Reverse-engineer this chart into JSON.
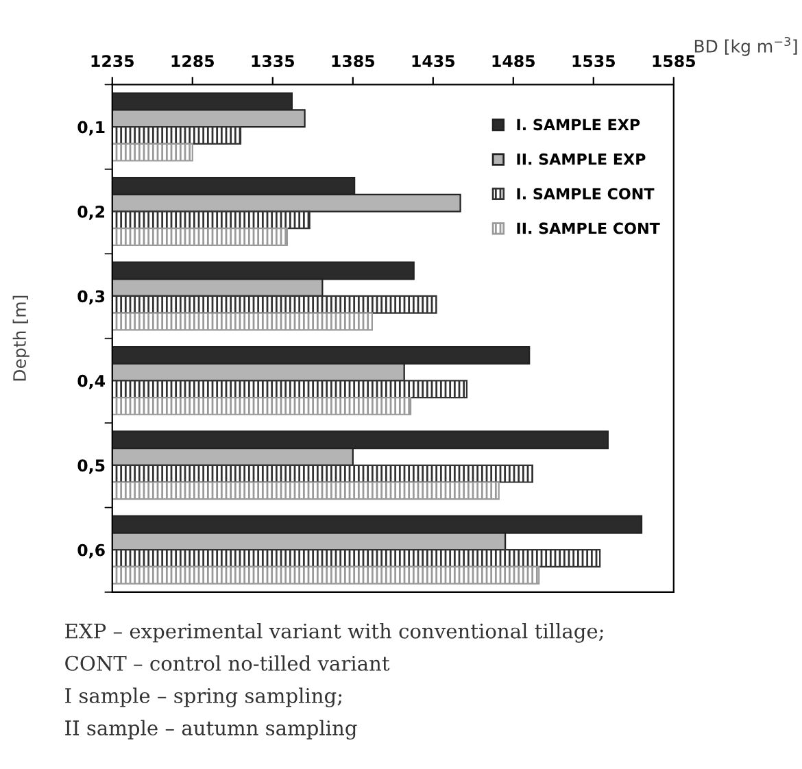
{
  "chart_data": {
    "type": "bar",
    "orientation": "horizontal",
    "xlabel": "BD [kg m$^{−3}$]",
    "ylabel": "Depth [m]",
    "categories": [
      "0,1",
      "0,2",
      "0,3",
      "0,4",
      "0,5",
      "0,6"
    ],
    "series": [
      {
        "name": "I. SAMPLE EXP",
        "color": "#2b2b2b",
        "values": [
          1347,
          1386,
          1423,
          1495,
          1544,
          1565
        ]
      },
      {
        "name": "II. SAMPLE EXP",
        "color": "#b4b4b4",
        "values": [
          1355,
          1452,
          1366,
          1417,
          1385,
          1480
        ]
      },
      {
        "name": "I. SAMPLE CONT",
        "color": "#333333",
        "values": [
          1315,
          1358,
          1437,
          1456,
          1497,
          1539
        ]
      },
      {
        "name": "II. SAMPLE CONT",
        "color": "#9a9a9a",
        "values": [
          1285,
          1344,
          1397,
          1421,
          1476,
          1501
        ]
      }
    ],
    "xlim": [
      1235,
      1585
    ],
    "xticks": [
      1235,
      1285,
      1335,
      1385,
      1435,
      1485,
      1535,
      1585
    ],
    "legend": "top right",
    "grid": false,
    "annotations": [
      "EXP – experimental variant with conventional tillage;",
      "CONT – control no-tilled variant",
      "I sample – spring sampling;",
      "II sample – autumn sampling"
    ]
  }
}
